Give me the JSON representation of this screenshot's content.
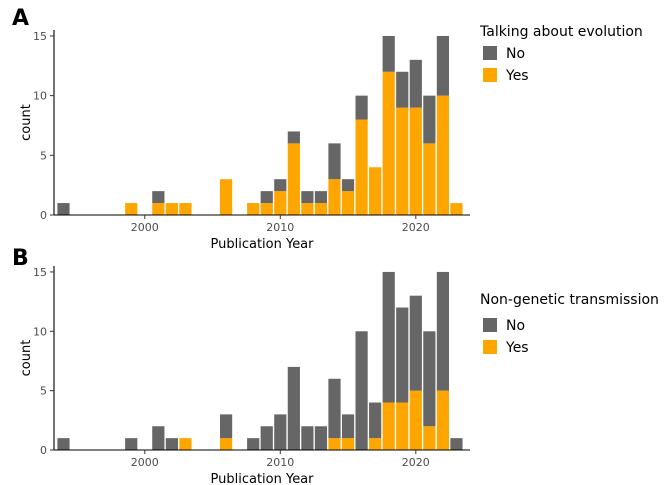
{
  "chart_data": [
    {
      "type": "bar",
      "stacked": true,
      "panel_label": "A",
      "xlabel": "Publication Year",
      "ylabel": "count",
      "xlim": [
        1993.3,
        2024
      ],
      "ylim": [
        0,
        15.5
      ],
      "x_ticks": [
        2000,
        2010,
        2020
      ],
      "y_ticks": [
        0,
        5,
        10,
        15
      ],
      "grid": false,
      "legend": {
        "title": "Talking about evolution",
        "position": "right"
      },
      "x": [
        1994,
        1999,
        2001,
        2002,
        2003,
        2006,
        2008,
        2009,
        2010,
        2011,
        2012,
        2013,
        2014,
        2015,
        2016,
        2017,
        2018,
        2019,
        2020,
        2021,
        2022,
        2023
      ],
      "series": [
        {
          "name": "No",
          "color": "#666666",
          "values": [
            1,
            0,
            1,
            0,
            0,
            0,
            0,
            1,
            1,
            1,
            1,
            1,
            3,
            1,
            2,
            0,
            3,
            3,
            4,
            4,
            5,
            0
          ]
        },
        {
          "name": "Yes",
          "color": "#ffa500",
          "values": [
            0,
            1,
            1,
            1,
            1,
            3,
            1,
            1,
            2,
            6,
            1,
            1,
            3,
            2,
            8,
            4,
            12,
            9,
            9,
            6,
            10,
            1
          ]
        }
      ]
    },
    {
      "type": "bar",
      "stacked": true,
      "panel_label": "B",
      "xlabel": "Publication Year",
      "ylabel": "count",
      "xlim": [
        1993.3,
        2024
      ],
      "ylim": [
        0,
        15.5
      ],
      "x_ticks": [
        2000,
        2010,
        2020
      ],
      "y_ticks": [
        0,
        5,
        10,
        15
      ],
      "grid": false,
      "legend": {
        "title": "Non-genetic transmission",
        "position": "right"
      },
      "x": [
        1994,
        1999,
        2001,
        2002,
        2003,
        2006,
        2008,
        2009,
        2010,
        2011,
        2012,
        2013,
        2014,
        2015,
        2016,
        2017,
        2018,
        2019,
        2020,
        2021,
        2022,
        2023
      ],
      "series": [
        {
          "name": "No",
          "color": "#666666",
          "values": [
            1,
            1,
            2,
            1,
            0,
            2,
            1,
            2,
            3,
            7,
            2,
            2,
            5,
            2,
            10,
            3,
            11,
            8,
            8,
            8,
            10,
            1
          ]
        },
        {
          "name": "Yes",
          "color": "#ffa500",
          "values": [
            0,
            0,
            0,
            0,
            1,
            1,
            0,
            0,
            0,
            0,
            0,
            0,
            1,
            1,
            0,
            1,
            4,
            4,
            5,
            2,
            5,
            0
          ]
        }
      ]
    }
  ]
}
